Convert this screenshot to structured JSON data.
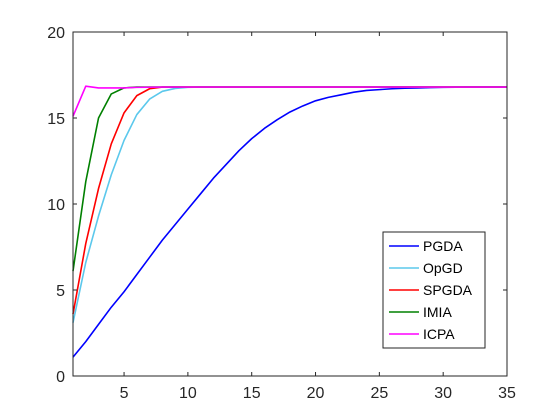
{
  "chart_data": {
    "type": "line",
    "title": "",
    "xlabel": "",
    "ylabel": "",
    "xlim": [
      1,
      35
    ],
    "ylim": [
      0,
      20
    ],
    "xticks": [
      5,
      10,
      15,
      20,
      25,
      30,
      35
    ],
    "yticks": [
      0,
      5,
      10,
      15,
      20
    ],
    "grid": false,
    "legend_position": "lower-right",
    "series": [
      {
        "name": "PGDA",
        "color": "#0000ff",
        "x": [
          1,
          2,
          3,
          4,
          5,
          6,
          7,
          8,
          9,
          10,
          11,
          12,
          13,
          14,
          15,
          16,
          17,
          18,
          19,
          20,
          21,
          22,
          23,
          24,
          25,
          26,
          27,
          28,
          29,
          30,
          31,
          32,
          33,
          34,
          35
        ],
        "y": [
          1.1,
          2.0,
          3.0,
          4.0,
          4.9,
          5.9,
          6.9,
          7.9,
          8.8,
          9.7,
          10.6,
          11.5,
          12.3,
          13.1,
          13.8,
          14.4,
          14.9,
          15.35,
          15.7,
          16.0,
          16.2,
          16.35,
          16.5,
          16.6,
          16.65,
          16.7,
          16.73,
          16.75,
          16.77,
          16.78,
          16.79,
          16.8,
          16.8,
          16.8,
          16.8
        ]
      },
      {
        "name": "OpGD",
        "color": "#5bc8ec",
        "x": [
          1,
          2,
          3,
          4,
          5,
          6,
          7,
          8,
          9,
          10,
          11,
          12,
          13,
          14,
          15,
          20,
          25,
          30,
          35
        ],
        "y": [
          3.1,
          6.6,
          9.3,
          11.7,
          13.7,
          15.2,
          16.1,
          16.55,
          16.72,
          16.78,
          16.8,
          16.8,
          16.8,
          16.8,
          16.8,
          16.8,
          16.8,
          16.8,
          16.8
        ]
      },
      {
        "name": "SPGDA",
        "color": "#ff0000",
        "x": [
          1,
          2,
          3,
          4,
          5,
          6,
          7,
          8,
          9,
          10,
          15,
          20,
          25,
          30,
          35
        ],
        "y": [
          3.6,
          7.7,
          10.9,
          13.5,
          15.3,
          16.3,
          16.7,
          16.8,
          16.8,
          16.8,
          16.8,
          16.8,
          16.8,
          16.8,
          16.8
        ]
      },
      {
        "name": "IMIA",
        "color": "#008000",
        "x": [
          1,
          2,
          3,
          4,
          5,
          6,
          7,
          8,
          10,
          15,
          20,
          25,
          30,
          35
        ],
        "y": [
          6.1,
          11.3,
          15.0,
          16.4,
          16.75,
          16.8,
          16.8,
          16.8,
          16.8,
          16.8,
          16.8,
          16.8,
          16.8,
          16.8
        ]
      },
      {
        "name": "ICPA",
        "color": "#ff00ff",
        "x": [
          1,
          2,
          3,
          4,
          5,
          6,
          8,
          10,
          15,
          20,
          25,
          30,
          35
        ],
        "y": [
          15.1,
          16.85,
          16.75,
          16.75,
          16.75,
          16.78,
          16.8,
          16.8,
          16.8,
          16.8,
          16.8,
          16.8,
          16.8
        ]
      }
    ]
  }
}
